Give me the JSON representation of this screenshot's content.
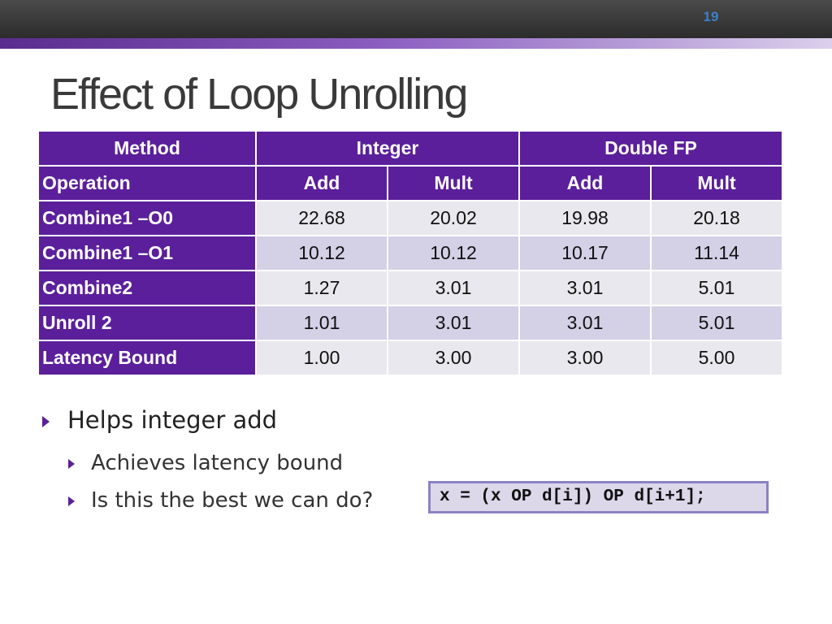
{
  "slide": {
    "number": "19",
    "title": "Effect of Loop Unrolling"
  },
  "table": {
    "header1": [
      "Method",
      "Integer",
      "Double FP"
    ],
    "header2": [
      "Operation",
      "Add",
      "Mult",
      "Add",
      "Mult"
    ],
    "rows": [
      {
        "label": "Combine1 –O0",
        "values": [
          "22.68",
          "20.02",
          "19.98",
          "20.18"
        ]
      },
      {
        "label": "Combine1 –O1",
        "values": [
          "10.12",
          "10.12",
          "10.17",
          "11.14"
        ]
      },
      {
        "label": "Combine2",
        "values": [
          "1.27",
          "3.01",
          "3.01",
          "5.01"
        ]
      },
      {
        "label": "Unroll 2",
        "values": [
          "1.01",
          "3.01",
          "3.01",
          "5.01"
        ]
      },
      {
        "label": "Latency Bound",
        "values": [
          "1.00",
          "3.00",
          "3.00",
          "5.00"
        ]
      }
    ]
  },
  "bullets": {
    "main": "Helps integer add",
    "sub": [
      "Achieves latency bound",
      "Is this the best we can do?"
    ]
  },
  "code": "x = (x OP d[i]) OP d[i+1];",
  "colors": {
    "header_purple": "#5b1f9b",
    "bullet_purple": "#5b1f9b",
    "slide_number_blue": "#3d7fc8"
  }
}
